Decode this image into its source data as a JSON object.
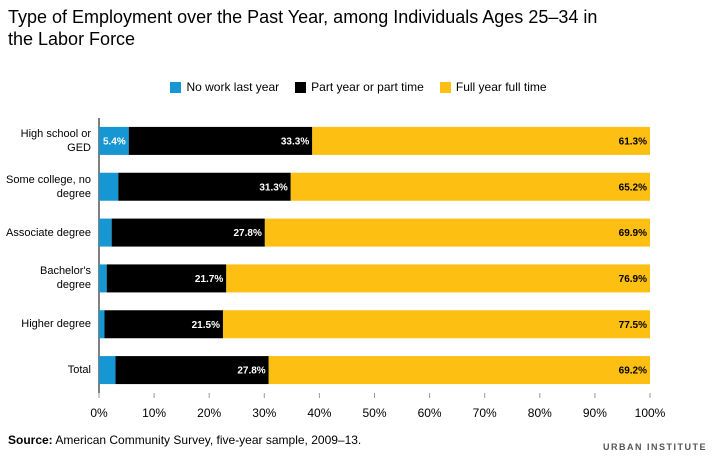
{
  "chart_data": {
    "type": "stacked-bar-horizontal",
    "title": "Type of Employment over the Past Year, among Individuals Ages 25–34 in the Labor Force",
    "categories": [
      "High school or GED",
      "Some college, no degree",
      "Associate degree",
      "Bachelor's degree",
      "Higher degree",
      "Total"
    ],
    "series": [
      {
        "name": "No work last year",
        "color": "#1696d2",
        "values": [
          5.4,
          3.5,
          2.3,
          1.4,
          1.0,
          3.0
        ],
        "value_labels": [
          "5.4%",
          null,
          null,
          null,
          null,
          null
        ]
      },
      {
        "name": "Part year or part time",
        "color": "#000000",
        "values": [
          33.3,
          31.3,
          27.8,
          21.7,
          21.5,
          27.8
        ],
        "value_labels": [
          "33.3%",
          "31.3%",
          "27.8%",
          "21.7%",
          "21.5%",
          "27.8%"
        ]
      },
      {
        "name": "Full year full time",
        "color": "#fdbf11",
        "values": [
          61.3,
          65.2,
          69.9,
          76.9,
          77.5,
          69.2
        ],
        "value_labels": [
          "61.3%",
          "65.2%",
          "69.9%",
          "76.9%",
          "77.5%",
          "69.2%"
        ]
      }
    ],
    "xlim": [
      0,
      100
    ],
    "xticks": [
      {
        "value": 0,
        "label": "0%"
      },
      {
        "value": 10,
        "label": "10%"
      },
      {
        "value": 20,
        "label": "20%"
      },
      {
        "value": 30,
        "label": "30%"
      },
      {
        "value": 40,
        "label": "40%"
      },
      {
        "value": 50,
        "label": "50%"
      },
      {
        "value": 60,
        "label": "60%"
      },
      {
        "value": 70,
        "label": "70%"
      },
      {
        "value": 80,
        "label": "80%"
      },
      {
        "value": 90,
        "label": "90%"
      },
      {
        "value": 100,
        "label": "100%"
      }
    ],
    "grid": false,
    "source_label": "Source:",
    "source": "American Community Survey, five-year sample, 2009–13.",
    "brand": "URBAN INSTITUTE"
  }
}
